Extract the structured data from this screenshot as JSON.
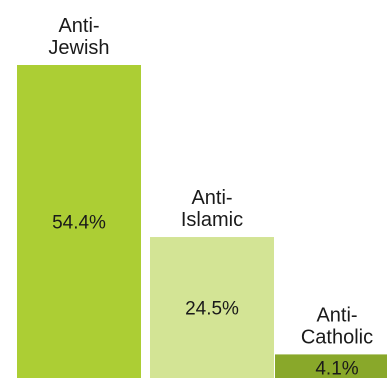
{
  "chart_data": {
    "type": "bar",
    "title": "",
    "xlabel": "",
    "ylabel": "",
    "categories": [
      "Anti-Jewish",
      "Anti-Islamic",
      "Anti-Catholic"
    ],
    "category_lines": [
      [
        "Anti-",
        "Jewish"
      ],
      [
        "Anti-",
        "Islamic"
      ],
      [
        "Anti-",
        "Catholic"
      ]
    ],
    "values": [
      54.4,
      24.5,
      4.1
    ],
    "value_labels": [
      "54.4%",
      "24.5%",
      "4.1%"
    ],
    "colors": [
      "#acce34",
      "#d3e495",
      "#89a82a"
    ],
    "ylim": [
      0,
      54.4
    ],
    "grid": false,
    "legend": "none"
  }
}
